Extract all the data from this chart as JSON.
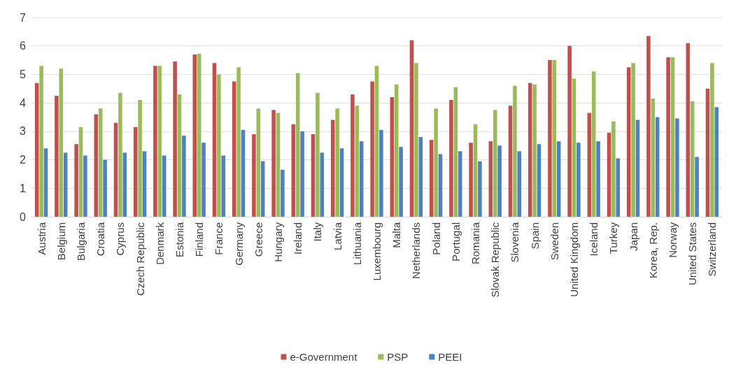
{
  "chart_data": {
    "type": "bar",
    "categories": [
      "Austria",
      "Belgium",
      "Bulgaria",
      "Croatia",
      "Cyprus",
      "Czech Republic",
      "Denmark",
      "Estonia",
      "Finland",
      "France",
      "Germany",
      "Greece",
      "Hungary",
      "Ireland",
      "Italy",
      "Latvia",
      "Lithuania",
      "Luxembourg",
      "Malta",
      "Netherlands",
      "Poland",
      "Portugal",
      "Romania",
      "Slovak Republic",
      "Slovenia",
      "Spain",
      "Sweden",
      "United Kingdom",
      "Iceland",
      "Turkey",
      "Japan",
      "Korea, Rep.",
      "Norway",
      "United States",
      "Switzerland"
    ],
    "series": [
      {
        "name": "e-Government",
        "color": "#c0504d",
        "values": [
          4.7,
          4.25,
          2.55,
          3.6,
          3.3,
          3.15,
          5.3,
          5.45,
          5.7,
          5.4,
          4.75,
          2.9,
          3.75,
          3.25,
          2.9,
          3.4,
          4.3,
          4.75,
          4.2,
          6.2,
          2.7,
          4.1,
          2.6,
          2.65,
          3.9,
          4.7,
          5.5,
          6.0,
          3.65,
          2.95,
          5.25,
          6.35,
          5.6,
          6.1,
          4.5
        ]
      },
      {
        "name": "PSP",
        "color": "#9bbb59",
        "values": [
          5.3,
          5.2,
          3.15,
          3.8,
          4.35,
          4.1,
          5.3,
          4.3,
          5.72,
          5.0,
          5.25,
          3.8,
          3.65,
          5.05,
          4.35,
          3.8,
          3.9,
          5.3,
          4.65,
          5.4,
          3.8,
          4.55,
          3.25,
          3.75,
          4.6,
          4.65,
          5.5,
          4.85,
          5.1,
          3.35,
          5.4,
          4.15,
          5.6,
          4.05,
          5.4
        ]
      },
      {
        "name": "PEEI",
        "color": "#4f81bd",
        "values": [
          2.4,
          2.25,
          2.15,
          2.0,
          2.25,
          2.3,
          2.15,
          2.85,
          2.6,
          2.15,
          3.05,
          1.95,
          1.65,
          3.0,
          2.25,
          2.4,
          2.65,
          3.05,
          2.45,
          2.8,
          2.2,
          2.3,
          1.95,
          2.5,
          2.3,
          2.55,
          2.65,
          2.6,
          2.65,
          2.05,
          3.4,
          3.5,
          3.45,
          2.1,
          3.85
        ]
      }
    ],
    "ylim": [
      0,
      7
    ],
    "yticks": [
      0,
      1,
      2,
      3,
      4,
      5,
      6,
      7
    ],
    "grid": "y",
    "legend": "bottom"
  }
}
